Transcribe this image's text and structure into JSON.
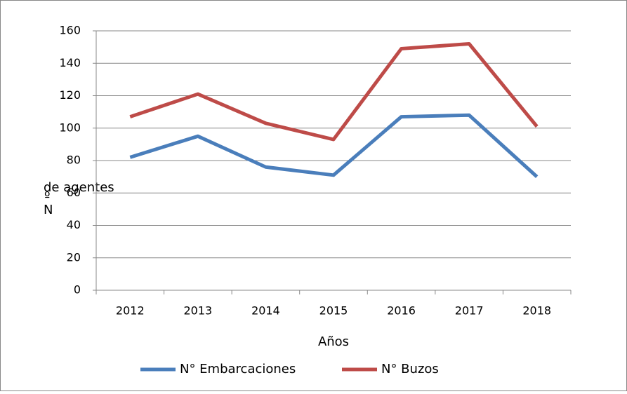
{
  "chart_data": {
    "type": "line",
    "categories": [
      "2012",
      "2013",
      "2014",
      "2015",
      "2016",
      "2017",
      "2018"
    ],
    "series": [
      {
        "name": "N° Embarcaciones",
        "color": "#4a7ebb",
        "values": [
          82,
          95,
          76,
          71,
          107,
          108,
          70
        ]
      },
      {
        "name": "N° Buzos",
        "color": "#be4b48",
        "values": [
          107,
          121,
          103,
          93,
          149,
          152,
          101
        ]
      }
    ],
    "ylim": [
      0,
      160
    ],
    "yticks": [
      0,
      20,
      40,
      60,
      80,
      100,
      120,
      140,
      160
    ],
    "grid": true,
    "x_label": "Años",
    "y_label": {
      "main": "de agentes",
      "mark": "º",
      "letter": "N"
    },
    "legend": "bottom"
  }
}
